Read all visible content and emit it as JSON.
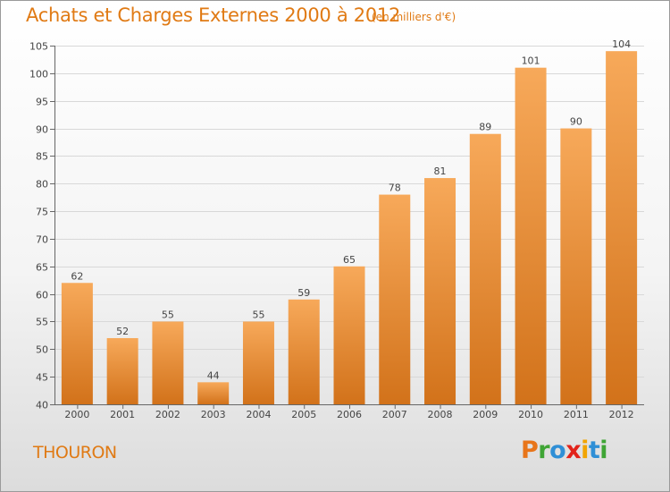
{
  "chart_data": {
    "type": "bar",
    "title": "Achats et Charges Externes 2000 à 2012",
    "subtitle": "(en milliers d'€)",
    "categories": [
      "2000",
      "2001",
      "2002",
      "2003",
      "2004",
      "2005",
      "2006",
      "2007",
      "2008",
      "2009",
      "2010",
      "2011",
      "2012"
    ],
    "values": [
      62,
      52,
      55,
      44,
      55,
      59,
      65,
      78,
      81,
      89,
      101,
      90,
      104
    ],
    "xlabel": "",
    "ylabel": "",
    "ylim": [
      40,
      105
    ],
    "yticks": [
      40,
      45,
      50,
      55,
      60,
      65,
      70,
      75,
      80,
      85,
      90,
      95,
      100,
      105
    ],
    "grid": true,
    "bar_color_top": "#f7a95a",
    "bar_color_bottom": "#d2721a"
  },
  "footer": {
    "location": "THOURON",
    "logo_text": "Proxiti",
    "logo_colors": [
      "#e8751a",
      "#3fa535",
      "#2f8fd6",
      "#e2231a",
      "#f2a400",
      "#2f8fd6",
      "#3fa535"
    ]
  }
}
